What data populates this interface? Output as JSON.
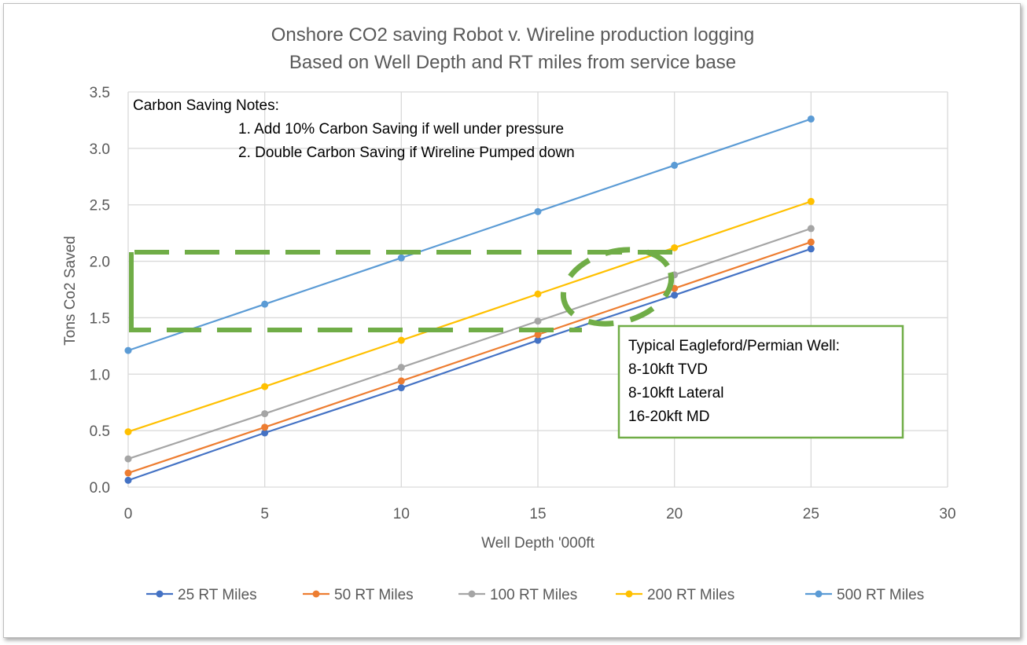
{
  "chart_data": {
    "type": "line",
    "title": [
      "Onshore CO2 saving Robot v. Wireline production logging",
      "Based on Well Depth and RT miles from service base"
    ],
    "xlabel": "Well Depth '000ft",
    "ylabel": "Tons Co2 Saved",
    "xlim": [
      0,
      30
    ],
    "ylim": [
      0,
      3.5
    ],
    "xticks": [
      "0",
      "5",
      "10",
      "15",
      "20",
      "25",
      "30"
    ],
    "yticks": [
      "0.0",
      "0.5",
      "1.0",
      "1.5",
      "2.0",
      "2.5",
      "3.0",
      "3.5"
    ],
    "grid": true,
    "legend": "bottom",
    "x": [
      0,
      5,
      10,
      15,
      20,
      25
    ],
    "series": [
      {
        "name": "25 RT Miles",
        "color": "#4472C4",
        "values": [
          0.06,
          0.48,
          0.88,
          1.3,
          1.7,
          2.11
        ]
      },
      {
        "name": "50 RT Miles",
        "color": "#ED7D31",
        "values": [
          0.125,
          0.53,
          0.94,
          1.35,
          1.76,
          2.17
        ]
      },
      {
        "name": "100 RT Miles",
        "color": "#A5A5A5",
        "values": [
          0.25,
          0.65,
          1.06,
          1.47,
          1.88,
          2.29
        ]
      },
      {
        "name": "200 RT Miles",
        "color": "#FFC000",
        "values": [
          0.49,
          0.89,
          1.3,
          1.71,
          2.12,
          2.53
        ]
      },
      {
        "name": "500 RT Miles",
        "color": "#5B9BD5",
        "values": [
          1.21,
          1.62,
          2.03,
          2.44,
          2.85,
          3.26
        ]
      }
    ],
    "notes": {
      "heading": "Carbon Saving Notes:",
      "items": [
        "1. Add 10% Carbon Saving if well under pressure",
        "2. Double Carbon Saving if Wireline Pumped down"
      ]
    },
    "callout": {
      "lines": [
        "Typical Eagleford/Permian Well:",
        "8-10kft TVD",
        "8-10kft Lateral",
        "16-20kft MD"
      ],
      "color": "#70AD47"
    }
  }
}
